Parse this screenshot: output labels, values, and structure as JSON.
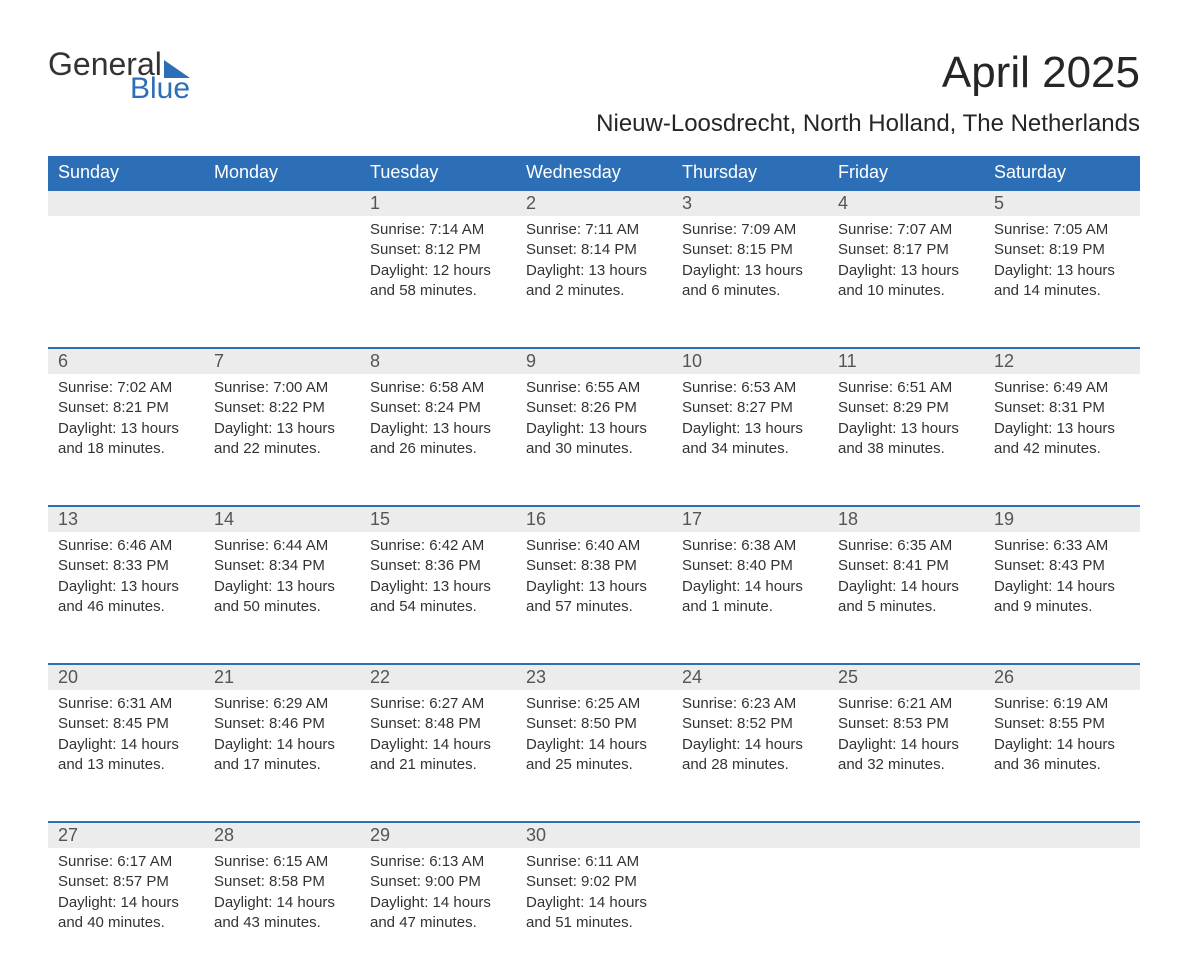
{
  "logo": {
    "general": "General",
    "blue": "Blue"
  },
  "title": "April 2025",
  "subtitle": "Nieuw-Loosdrecht, North Holland, The Netherlands",
  "columns": [
    "Sunday",
    "Monday",
    "Tuesday",
    "Wednesday",
    "Thursday",
    "Friday",
    "Saturday"
  ],
  "colors": {
    "header_bg": "#2d6fb6",
    "header_fg": "#ffffff",
    "daynum_bg": "#ececec",
    "row_border": "#2d6fb6",
    "text": "#333333",
    "logo_text": "#333333",
    "logo_blue": "#2d6fb6",
    "background": "#ffffff"
  },
  "typography": {
    "title_fontsize": 44,
    "subtitle_fontsize": 24,
    "header_fontsize": 18,
    "daynum_fontsize": 18,
    "cell_fontsize": 15,
    "logo_fontsize": 32
  },
  "layout": {
    "cols": 7,
    "rows": 5
  },
  "weeks": [
    [
      {
        "day": "",
        "sunrise": "",
        "sunset": "",
        "daylight": ""
      },
      {
        "day": "",
        "sunrise": "",
        "sunset": "",
        "daylight": ""
      },
      {
        "day": "1",
        "sunrise": "Sunrise: 7:14 AM",
        "sunset": "Sunset: 8:12 PM",
        "daylight": "Daylight: 12 hours and 58 minutes."
      },
      {
        "day": "2",
        "sunrise": "Sunrise: 7:11 AM",
        "sunset": "Sunset: 8:14 PM",
        "daylight": "Daylight: 13 hours and 2 minutes."
      },
      {
        "day": "3",
        "sunrise": "Sunrise: 7:09 AM",
        "sunset": "Sunset: 8:15 PM",
        "daylight": "Daylight: 13 hours and 6 minutes."
      },
      {
        "day": "4",
        "sunrise": "Sunrise: 7:07 AM",
        "sunset": "Sunset: 8:17 PM",
        "daylight": "Daylight: 13 hours and 10 minutes."
      },
      {
        "day": "5",
        "sunrise": "Sunrise: 7:05 AM",
        "sunset": "Sunset: 8:19 PM",
        "daylight": "Daylight: 13 hours and 14 minutes."
      }
    ],
    [
      {
        "day": "6",
        "sunrise": "Sunrise: 7:02 AM",
        "sunset": "Sunset: 8:21 PM",
        "daylight": "Daylight: 13 hours and 18 minutes."
      },
      {
        "day": "7",
        "sunrise": "Sunrise: 7:00 AM",
        "sunset": "Sunset: 8:22 PM",
        "daylight": "Daylight: 13 hours and 22 minutes."
      },
      {
        "day": "8",
        "sunrise": "Sunrise: 6:58 AM",
        "sunset": "Sunset: 8:24 PM",
        "daylight": "Daylight: 13 hours and 26 minutes."
      },
      {
        "day": "9",
        "sunrise": "Sunrise: 6:55 AM",
        "sunset": "Sunset: 8:26 PM",
        "daylight": "Daylight: 13 hours and 30 minutes."
      },
      {
        "day": "10",
        "sunrise": "Sunrise: 6:53 AM",
        "sunset": "Sunset: 8:27 PM",
        "daylight": "Daylight: 13 hours and 34 minutes."
      },
      {
        "day": "11",
        "sunrise": "Sunrise: 6:51 AM",
        "sunset": "Sunset: 8:29 PM",
        "daylight": "Daylight: 13 hours and 38 minutes."
      },
      {
        "day": "12",
        "sunrise": "Sunrise: 6:49 AM",
        "sunset": "Sunset: 8:31 PM",
        "daylight": "Daylight: 13 hours and 42 minutes."
      }
    ],
    [
      {
        "day": "13",
        "sunrise": "Sunrise: 6:46 AM",
        "sunset": "Sunset: 8:33 PM",
        "daylight": "Daylight: 13 hours and 46 minutes."
      },
      {
        "day": "14",
        "sunrise": "Sunrise: 6:44 AM",
        "sunset": "Sunset: 8:34 PM",
        "daylight": "Daylight: 13 hours and 50 minutes."
      },
      {
        "day": "15",
        "sunrise": "Sunrise: 6:42 AM",
        "sunset": "Sunset: 8:36 PM",
        "daylight": "Daylight: 13 hours and 54 minutes."
      },
      {
        "day": "16",
        "sunrise": "Sunrise: 6:40 AM",
        "sunset": "Sunset: 8:38 PM",
        "daylight": "Daylight: 13 hours and 57 minutes."
      },
      {
        "day": "17",
        "sunrise": "Sunrise: 6:38 AM",
        "sunset": "Sunset: 8:40 PM",
        "daylight": "Daylight: 14 hours and 1 minute."
      },
      {
        "day": "18",
        "sunrise": "Sunrise: 6:35 AM",
        "sunset": "Sunset: 8:41 PM",
        "daylight": "Daylight: 14 hours and 5 minutes."
      },
      {
        "day": "19",
        "sunrise": "Sunrise: 6:33 AM",
        "sunset": "Sunset: 8:43 PM",
        "daylight": "Daylight: 14 hours and 9 minutes."
      }
    ],
    [
      {
        "day": "20",
        "sunrise": "Sunrise: 6:31 AM",
        "sunset": "Sunset: 8:45 PM",
        "daylight": "Daylight: 14 hours and 13 minutes."
      },
      {
        "day": "21",
        "sunrise": "Sunrise: 6:29 AM",
        "sunset": "Sunset: 8:46 PM",
        "daylight": "Daylight: 14 hours and 17 minutes."
      },
      {
        "day": "22",
        "sunrise": "Sunrise: 6:27 AM",
        "sunset": "Sunset: 8:48 PM",
        "daylight": "Daylight: 14 hours and 21 minutes."
      },
      {
        "day": "23",
        "sunrise": "Sunrise: 6:25 AM",
        "sunset": "Sunset: 8:50 PM",
        "daylight": "Daylight: 14 hours and 25 minutes."
      },
      {
        "day": "24",
        "sunrise": "Sunrise: 6:23 AM",
        "sunset": "Sunset: 8:52 PM",
        "daylight": "Daylight: 14 hours and 28 minutes."
      },
      {
        "day": "25",
        "sunrise": "Sunrise: 6:21 AM",
        "sunset": "Sunset: 8:53 PM",
        "daylight": "Daylight: 14 hours and 32 minutes."
      },
      {
        "day": "26",
        "sunrise": "Sunrise: 6:19 AM",
        "sunset": "Sunset: 8:55 PM",
        "daylight": "Daylight: 14 hours and 36 minutes."
      }
    ],
    [
      {
        "day": "27",
        "sunrise": "Sunrise: 6:17 AM",
        "sunset": "Sunset: 8:57 PM",
        "daylight": "Daylight: 14 hours and 40 minutes."
      },
      {
        "day": "28",
        "sunrise": "Sunrise: 6:15 AM",
        "sunset": "Sunset: 8:58 PM",
        "daylight": "Daylight: 14 hours and 43 minutes."
      },
      {
        "day": "29",
        "sunrise": "Sunrise: 6:13 AM",
        "sunset": "Sunset: 9:00 PM",
        "daylight": "Daylight: 14 hours and 47 minutes."
      },
      {
        "day": "30",
        "sunrise": "Sunrise: 6:11 AM",
        "sunset": "Sunset: 9:02 PM",
        "daylight": "Daylight: 14 hours and 51 minutes."
      },
      {
        "day": "",
        "sunrise": "",
        "sunset": "",
        "daylight": ""
      },
      {
        "day": "",
        "sunrise": "",
        "sunset": "",
        "daylight": ""
      },
      {
        "day": "",
        "sunrise": "",
        "sunset": "",
        "daylight": ""
      }
    ]
  ]
}
